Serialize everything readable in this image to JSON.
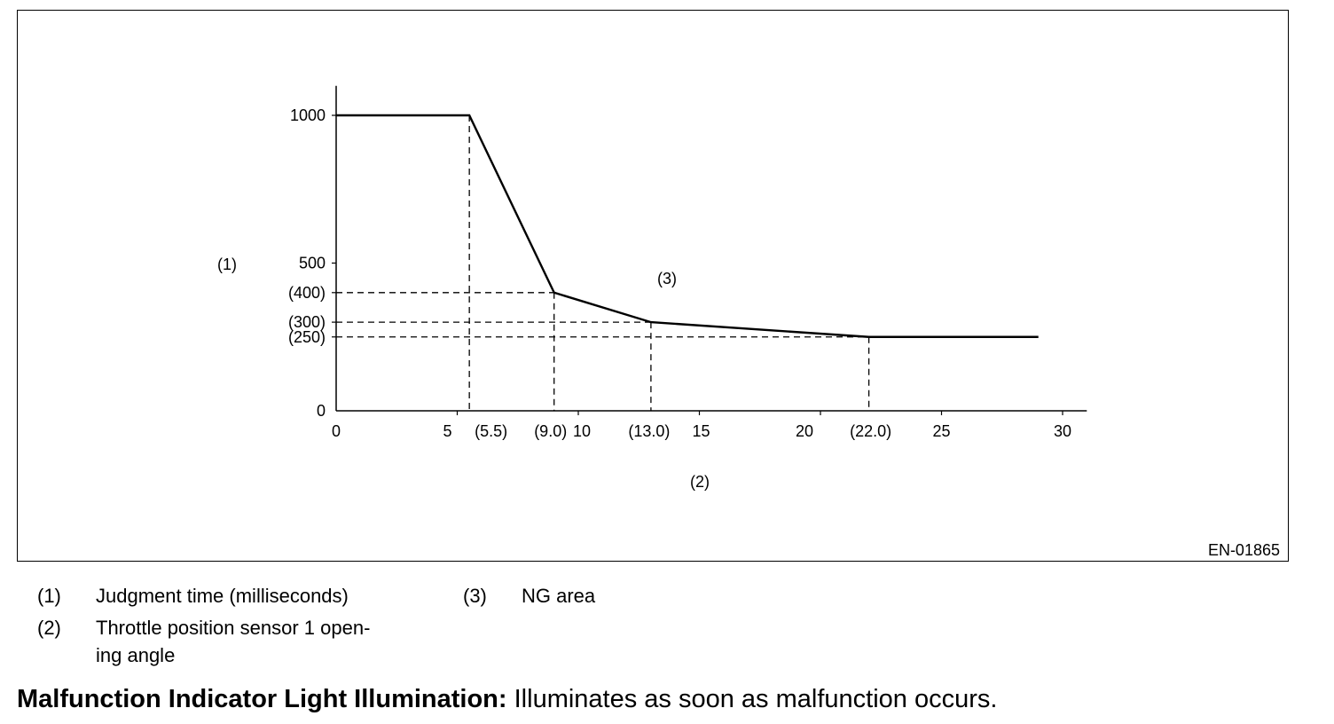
{
  "chart_data": {
    "type": "line",
    "x": [
      0,
      5.5,
      9.0,
      13.0,
      22.0,
      29.0
    ],
    "y": [
      1000,
      1000,
      400,
      300,
      250,
      250
    ],
    "xlim": [
      0,
      31
    ],
    "ylim": [
      0,
      1100
    ],
    "x_ticks": [
      {
        "value": 0,
        "label": "0"
      },
      {
        "value": 5,
        "label": "5"
      },
      {
        "value": 5.5,
        "label": "(5.5)"
      },
      {
        "value": 9.0,
        "label": "(9.0)"
      },
      {
        "value": 10,
        "label": "10"
      },
      {
        "value": 13.0,
        "label": "(13.0)"
      },
      {
        "value": 15,
        "label": "15"
      },
      {
        "value": 20,
        "label": "20"
      },
      {
        "value": 22.0,
        "label": "(22.0)"
      },
      {
        "value": 25,
        "label": "25"
      },
      {
        "value": 30,
        "label": "30"
      }
    ],
    "y_ticks": [
      {
        "value": 0,
        "label": "0"
      },
      {
        "value": 250,
        "label": "(250)"
      },
      {
        "value": 300,
        "label": "(300)"
      },
      {
        "value": 400,
        "label": "(400)"
      },
      {
        "value": 500,
        "label": "500"
      },
      {
        "value": 1000,
        "label": "1000"
      }
    ],
    "reference_points": [
      {
        "x": 5.5,
        "y": 1000
      },
      {
        "x": 9.0,
        "y": 400
      },
      {
        "x": 13.0,
        "y": 300
      },
      {
        "x": 22.0,
        "y": 250
      }
    ],
    "ylabel": "(1)",
    "xlabel": "(2)",
    "region_label": "(3)",
    "figure_id": "EN-01865",
    "grid": false
  },
  "legend": [
    {
      "key": "(1)",
      "text": "Judgment time (milliseconds)"
    },
    {
      "key": "(2)",
      "text_line1": "Throttle position sensor 1 open-",
      "text_line2": "ing angle"
    },
    {
      "key": "(3)",
      "text": "NG area"
    }
  ],
  "note": {
    "label": "Malfunction Indicator Light Illumination:",
    "text": " Illuminates as soon as malfunction occurs."
  }
}
